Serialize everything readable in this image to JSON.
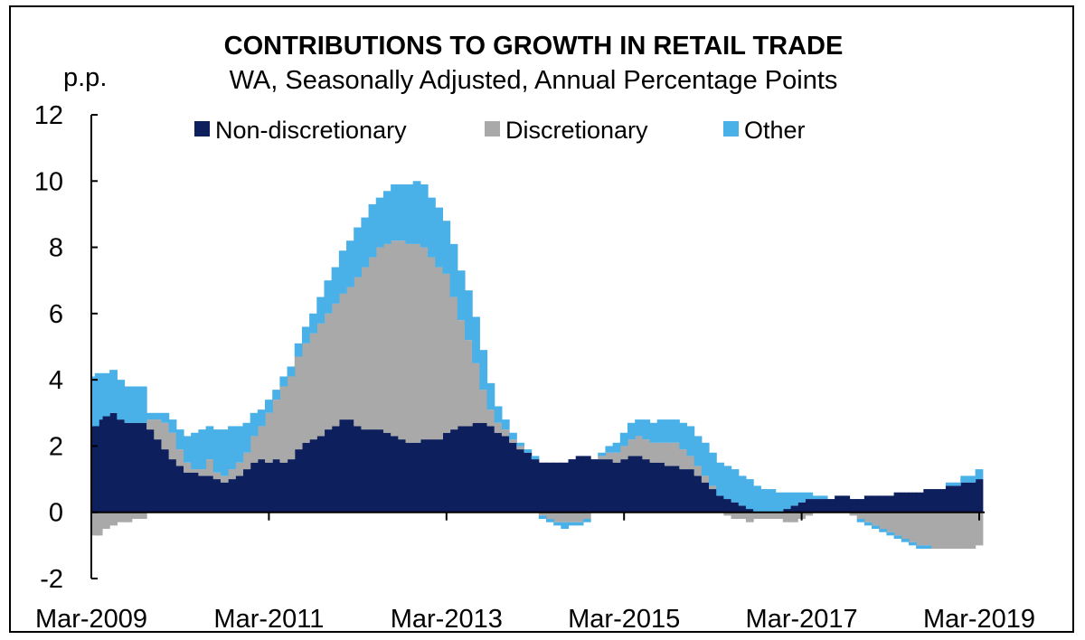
{
  "chart_data": {
    "type": "area",
    "stacked": true,
    "title": "CONTRIBUTIONS TO GROWTH IN RETAIL TRADE",
    "subtitle": "WA, Seasonally Adjusted, Annual Percentage Points",
    "ylabel": "p.p.",
    "ylim": [
      -2,
      12
    ],
    "yticks": [
      "-2",
      "0",
      "2",
      "4",
      "6",
      "8",
      "10",
      "12"
    ],
    "xtick_labels": [
      "Mar-2009",
      "Mar-2011",
      "Mar-2013",
      "Mar-2015",
      "Mar-2017",
      "Mar-2019"
    ],
    "x_start": "Mar-2009",
    "frequency": "monthly",
    "legend_position": "top",
    "series": [
      {
        "name": "Non-discretionary",
        "color": "#0d1f5c",
        "values": [
          2.6,
          2.8,
          2.9,
          3.0,
          2.8,
          2.7,
          2.7,
          2.7,
          2.5,
          2.2,
          1.9,
          1.6,
          1.4,
          1.2,
          1.2,
          1.1,
          1.1,
          1.0,
          0.9,
          1.0,
          1.1,
          1.3,
          1.5,
          1.6,
          1.5,
          1.6,
          1.5,
          1.6,
          1.9,
          2.1,
          2.2,
          2.3,
          2.5,
          2.6,
          2.8,
          2.8,
          2.6,
          2.5,
          2.5,
          2.5,
          2.4,
          2.3,
          2.2,
          2.1,
          2.1,
          2.2,
          2.2,
          2.2,
          2.4,
          2.5,
          2.6,
          2.6,
          2.7,
          2.7,
          2.6,
          2.4,
          2.3,
          2.1,
          1.9,
          1.8,
          1.6,
          1.5,
          1.5,
          1.5,
          1.5,
          1.6,
          1.7,
          1.7,
          1.6,
          1.6,
          1.6,
          1.5,
          1.6,
          1.7,
          1.7,
          1.6,
          1.5,
          1.5,
          1.4,
          1.4,
          1.3,
          1.3,
          1.1,
          0.9,
          0.7,
          0.5,
          0.4,
          0.3,
          0.2,
          0.1,
          0.0,
          0.0,
          0.0,
          0.0,
          0.1,
          0.2,
          0.3,
          0.4,
          0.4,
          0.4,
          0.4,
          0.5,
          0.5,
          0.4,
          0.4,
          0.5,
          0.5,
          0.5,
          0.5,
          0.6,
          0.6,
          0.6,
          0.6,
          0.7,
          0.7,
          0.7,
          0.8,
          0.8,
          0.9,
          0.9,
          1.0
        ]
      },
      {
        "name": "Discretionary",
        "color": "#a9a9a9",
        "values": [
          -0.7,
          -0.7,
          -0.5,
          -0.4,
          -0.3,
          -0.3,
          -0.2,
          -0.2,
          0.3,
          0.6,
          0.8,
          0.8,
          0.5,
          0.3,
          0.1,
          0.2,
          0.5,
          0.2,
          0.2,
          0.3,
          0.4,
          0.5,
          0.8,
          1.0,
          1.5,
          1.8,
          2.3,
          2.5,
          2.8,
          3.0,
          3.2,
          3.4,
          3.5,
          3.7,
          3.8,
          4.0,
          4.5,
          4.9,
          5.2,
          5.5,
          5.7,
          5.9,
          6.0,
          6.0,
          6.0,
          5.8,
          5.5,
          5.2,
          4.8,
          4.0,
          3.2,
          2.6,
          1.8,
          1.0,
          0.5,
          0.3,
          0.2,
          0.1,
          0.1,
          0.0,
          0.0,
          -0.1,
          -0.2,
          -0.3,
          -0.3,
          -0.3,
          -0.3,
          -0.2,
          0.0,
          0.1,
          0.2,
          0.3,
          0.4,
          0.5,
          0.6,
          0.6,
          0.6,
          0.6,
          0.7,
          0.7,
          0.6,
          0.4,
          0.3,
          0.2,
          0.1,
          0.0,
          -0.1,
          -0.2,
          -0.2,
          -0.3,
          -0.2,
          -0.2,
          -0.2,
          -0.2,
          -0.3,
          -0.3,
          -0.2,
          -0.1,
          0.0,
          0.0,
          0.0,
          0.0,
          0.0,
          -0.1,
          -0.2,
          -0.3,
          -0.4,
          -0.5,
          -0.6,
          -0.7,
          -0.8,
          -0.9,
          -1.0,
          -1.0,
          -1.1,
          -1.1,
          -1.1,
          -1.1,
          -1.1,
          -1.1,
          -1.0
        ]
      },
      {
        "name": "Other",
        "color": "#4ab0e8",
        "values": [
          1.5,
          1.4,
          1.3,
          1.3,
          1.2,
          1.1,
          1.1,
          1.1,
          0.2,
          0.2,
          0.3,
          0.4,
          0.6,
          0.8,
          1.1,
          1.2,
          1.0,
          1.3,
          1.4,
          1.3,
          1.1,
          0.9,
          0.7,
          0.5,
          0.4,
          0.3,
          0.3,
          0.3,
          0.4,
          0.5,
          0.6,
          0.8,
          1.0,
          1.1,
          1.3,
          1.4,
          1.5,
          1.5,
          1.6,
          1.5,
          1.6,
          1.7,
          1.7,
          1.8,
          1.9,
          1.9,
          1.8,
          1.8,
          1.6,
          1.6,
          1.5,
          1.5,
          1.4,
          1.2,
          0.8,
          0.5,
          0.3,
          0.2,
          0.1,
          0.1,
          0.1,
          -0.1,
          -0.1,
          -0.1,
          -0.2,
          -0.1,
          -0.1,
          -0.1,
          0.0,
          0.1,
          0.2,
          0.3,
          0.4,
          0.5,
          0.5,
          0.6,
          0.6,
          0.7,
          0.7,
          0.7,
          0.8,
          0.9,
          0.9,
          1.0,
          1.0,
          1.0,
          1.0,
          1.0,
          0.9,
          0.9,
          0.8,
          0.7,
          0.7,
          0.6,
          0.5,
          0.4,
          0.3,
          0.2,
          0.1,
          0.1,
          0.0,
          0.0,
          0.0,
          0.0,
          -0.1,
          -0.1,
          -0.1,
          -0.1,
          -0.1,
          -0.1,
          -0.1,
          -0.1,
          -0.1,
          -0.1,
          0.0,
          0.0,
          0.1,
          0.1,
          0.2,
          0.2,
          0.3
        ]
      }
    ]
  }
}
